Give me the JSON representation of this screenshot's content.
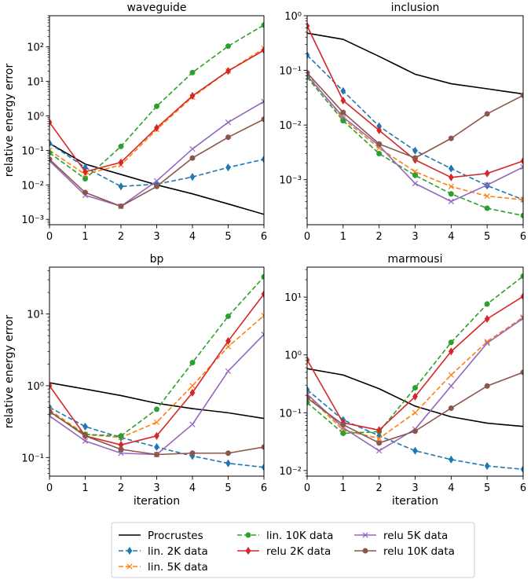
{
  "chart_data": [
    {
      "type": "line",
      "title": "waveguide",
      "xlabel": "",
      "ylabel": "relative energy error",
      "yscale": "log",
      "xlim": [
        0,
        6
      ],
      "ylim": [
        0.0007,
        800
      ],
      "x": [
        0,
        1,
        2,
        3,
        4,
        5,
        6
      ],
      "xticks": [
        "0",
        "1",
        "2",
        "3",
        "4",
        "5",
        "6"
      ],
      "yticks": [
        {
          "value": 0.001,
          "label": "10⁻³"
        },
        {
          "value": 0.01,
          "label": "10⁻²"
        },
        {
          "value": 0.1,
          "label": "10⁻¹"
        },
        {
          "value": 1,
          "label": "10⁰"
        },
        {
          "value": 10,
          "label": "10¹"
        },
        {
          "value": 100,
          "label": "10²"
        }
      ],
      "series": [
        {
          "name": "Procrustes",
          "values": [
            0.16,
            0.04,
            0.02,
            0.01,
            0.0055,
            0.0028,
            0.0014
          ]
        },
        {
          "name": "lin. 2K data",
          "values": [
            0.16,
            0.032,
            0.009,
            0.0105,
            0.017,
            0.032,
            0.055
          ]
        },
        {
          "name": "lin. 5K data",
          "values": [
            0.1,
            0.02,
            0.038,
            0.4,
            3.5,
            20,
            90
          ]
        },
        {
          "name": "lin. 10K data",
          "values": [
            0.085,
            0.015,
            0.13,
            1.9,
            18,
            105,
            430
          ]
        },
        {
          "name": "relu 2K data",
          "values": [
            0.65,
            0.024,
            0.045,
            0.45,
            3.8,
            20,
            80
          ]
        },
        {
          "name": "relu 5K data",
          "values": [
            0.05,
            0.005,
            0.0024,
            0.013,
            0.11,
            0.65,
            2.6
          ]
        },
        {
          "name": "relu 10K data",
          "values": [
            0.055,
            0.006,
            0.0024,
            0.009,
            0.06,
            0.24,
            0.8
          ]
        }
      ]
    },
    {
      "type": "line",
      "title": "inclusion",
      "xlabel": "",
      "ylabel": "",
      "yscale": "log",
      "xlim": [
        0,
        6
      ],
      "ylim": [
        0.00015,
        1.0
      ],
      "x": [
        0,
        1,
        2,
        3,
        4,
        5,
        6
      ],
      "xticks": [
        "0",
        "1",
        "2",
        "3",
        "4",
        "5",
        "6"
      ],
      "yticks": [
        {
          "value": 0.001,
          "label": "10⁻³"
        },
        {
          "value": 0.01,
          "label": "10⁻²"
        },
        {
          "value": 0.1,
          "label": "10⁻¹"
        },
        {
          "value": 1,
          "label": "10⁰"
        }
      ],
      "series": [
        {
          "name": "Procrustes",
          "values": [
            0.48,
            0.37,
            0.18,
            0.085,
            0.057,
            0.046,
            0.037
          ]
        },
        {
          "name": "lin. 2K data",
          "values": [
            0.19,
            0.042,
            0.0095,
            0.0034,
            0.0016,
            0.00078,
            0.00043
          ]
        },
        {
          "name": "lin. 5K data",
          "values": [
            0.085,
            0.013,
            0.0038,
            0.0014,
            0.00075,
            0.0005,
            0.00043
          ]
        },
        {
          "name": "lin. 10K data",
          "values": [
            0.075,
            0.012,
            0.003,
            0.0012,
            0.00055,
            0.0003,
            0.00022
          ]
        },
        {
          "name": "relu 2K data",
          "values": [
            0.65,
            0.028,
            0.008,
            0.0023,
            0.0011,
            0.0013,
            0.0022
          ]
        },
        {
          "name": "relu 5K data",
          "values": [
            0.08,
            0.014,
            0.0042,
            0.00085,
            0.0004,
            0.0008,
            0.0017
          ]
        },
        {
          "name": "relu 10K data",
          "values": [
            0.09,
            0.017,
            0.0045,
            0.0025,
            0.0057,
            0.016,
            0.035
          ]
        }
      ]
    },
    {
      "type": "line",
      "title": "bp",
      "xlabel": "iteration",
      "ylabel": "relative energy error",
      "yscale": "log",
      "xlim": [
        0,
        6
      ],
      "ylim": [
        0.055,
        45
      ],
      "x": [
        0,
        1,
        2,
        3,
        4,
        5,
        6
      ],
      "xticks": [
        "0",
        "1",
        "2",
        "3",
        "4",
        "5",
        "6"
      ],
      "yticks": [
        {
          "value": 0.1,
          "label": "10⁻¹"
        },
        {
          "value": 1,
          "label": "10⁰"
        },
        {
          "value": 10,
          "label": "10¹"
        }
      ],
      "series": [
        {
          "name": "Procrustes",
          "values": [
            1.1,
            0.9,
            0.73,
            0.57,
            0.48,
            0.42,
            0.35
          ]
        },
        {
          "name": "lin. 2K data",
          "values": [
            0.5,
            0.27,
            0.19,
            0.14,
            0.105,
            0.083,
            0.073
          ]
        },
        {
          "name": "lin. 5K data",
          "values": [
            0.46,
            0.21,
            0.19,
            0.31,
            1.0,
            3.5,
            9.5
          ]
        },
        {
          "name": "lin. 10K data",
          "values": [
            0.43,
            0.21,
            0.2,
            0.47,
            2.1,
            9.3,
            33
          ]
        },
        {
          "name": "relu 2K data",
          "values": [
            1.0,
            0.2,
            0.15,
            0.2,
            0.8,
            4.2,
            19
          ]
        },
        {
          "name": "relu 5K data",
          "values": [
            0.38,
            0.17,
            0.115,
            0.11,
            0.29,
            1.6,
            5.2
          ]
        },
        {
          "name": "relu 10K data",
          "values": [
            0.44,
            0.2,
            0.13,
            0.11,
            0.115,
            0.115,
            0.14
          ]
        }
      ]
    },
    {
      "type": "line",
      "title": "marmousi",
      "xlabel": "iteration",
      "ylabel": "",
      "yscale": "log",
      "xlim": [
        0,
        6
      ],
      "ylim": [
        0.008,
        33
      ],
      "x": [
        0,
        1,
        2,
        3,
        4,
        5,
        6
      ],
      "xticks": [
        "0",
        "1",
        "2",
        "3",
        "4",
        "5",
        "6"
      ],
      "yticks": [
        {
          "value": 0.01,
          "label": "10⁻²"
        },
        {
          "value": 0.1,
          "label": "10⁻¹"
        },
        {
          "value": 1,
          "label": "10⁰"
        },
        {
          "value": 10,
          "label": "10¹"
        }
      ],
      "series": [
        {
          "name": "Procrustes",
          "values": [
            0.58,
            0.45,
            0.26,
            0.13,
            0.085,
            0.066,
            0.058
          ]
        },
        {
          "name": "lin. 2K data",
          "values": [
            0.25,
            0.075,
            0.04,
            0.022,
            0.0155,
            0.012,
            0.0105
          ]
        },
        {
          "name": "lin. 5K data",
          "values": [
            0.2,
            0.05,
            0.036,
            0.1,
            0.45,
            1.7,
            4.5
          ]
        },
        {
          "name": "lin. 10K data",
          "values": [
            0.15,
            0.044,
            0.047,
            0.27,
            1.65,
            7.6,
            23
          ]
        },
        {
          "name": "relu 2K data",
          "values": [
            0.82,
            0.067,
            0.05,
            0.19,
            1.15,
            4.2,
            10.3
          ]
        },
        {
          "name": "relu 5K data",
          "values": [
            0.21,
            0.055,
            0.022,
            0.052,
            0.29,
            1.6,
            4.3
          ]
        },
        {
          "name": "relu 10K data",
          "values": [
            0.18,
            0.062,
            0.03,
            0.048,
            0.12,
            0.29,
            0.5
          ]
        }
      ]
    }
  ],
  "style": {
    "Procrustes": {
      "color": "#000000",
      "dash": "",
      "marker": "none"
    },
    "lin. 2K data": {
      "color": "#1f77b4",
      "dash": "6,3",
      "marker": "diamond"
    },
    "lin. 5K data": {
      "color": "#ff7f0e",
      "dash": "6,3",
      "marker": "x"
    },
    "lin. 10K data": {
      "color": "#2ca02c",
      "dash": "6,3",
      "marker": "circle"
    },
    "relu 2K data": {
      "color": "#d62728",
      "dash": "",
      "marker": "diamond"
    },
    "relu 5K data": {
      "color": "#9467bd",
      "dash": "",
      "marker": "x"
    },
    "relu 10K data": {
      "color": "#8c564b",
      "dash": "",
      "marker": "circle"
    }
  },
  "legend": {
    "placement": "bottom-center",
    "columns": [
      [
        "Procrustes",
        "lin. 2K data",
        "lin. 5K data"
      ],
      [
        "lin. 10K data",
        "relu 2K data"
      ],
      [
        "relu 5K data",
        "relu 10K data"
      ]
    ]
  }
}
